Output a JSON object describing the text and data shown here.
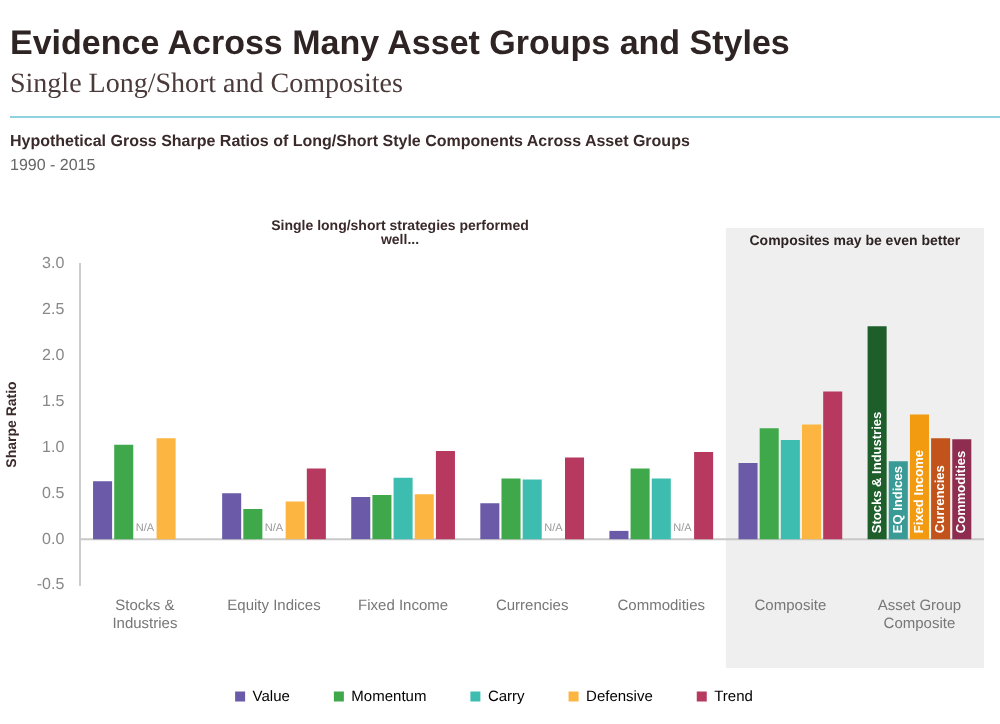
{
  "chart_data": {
    "type": "bar",
    "title": "Evidence Across Many Asset Groups and Styles",
    "subtitle": "Single Long/Short and Composites",
    "annotations": [
      "Hypothetical Gross Sharpe Ratios of Long/Short Style Components Across Asset Groups",
      "1990 - 2015",
      "Single long/short strategies performed well...",
      {
        "text": "N/A",
        "x": "Stocks & Industries",
        "y": 0
      },
      {
        "text": "N/A",
        "x": "Equity Indices",
        "y": 0
      },
      {
        "text": "N/A",
        "x": "Currencies",
        "y": 0
      },
      {
        "text": "N/A",
        "x": "Commodities",
        "y": 0
      },
      "Stocks & Industries",
      "EQ Indices",
      "Fixed Income",
      "Currencies",
      "Commodities"
    ],
    "ylabel": "Sharpe Ratio",
    "categories": [
      "Stocks & Industries",
      "Equity Indices",
      "Fixed Income",
      "Currencies",
      "Commodities",
      "Composite",
      "Asset Group Composite"
    ],
    "series": [
      {
        "name": "Value",
        "color": "#6a5aa8",
        "values": [
          0.63,
          0.5,
          0.46,
          0.39,
          0.09,
          0.83,
          2.32
        ],
        "colors": [
          "#6a5aa8",
          "#6a5aa8",
          "#6a5aa8",
          "#6a5aa8",
          "#6a5aa8",
          "#6a5aa8",
          "#1d5e2a"
        ]
      },
      {
        "name": "Momentum",
        "color": "#3fa84a",
        "values": [
          1.03,
          0.33,
          0.48,
          0.66,
          0.77,
          1.21,
          0.85
        ],
        "colors": [
          "#3fa84a",
          "#3fa84a",
          "#3fa84a",
          "#3fa84a",
          "#3fa84a",
          "#3fa84a",
          "#3a9a95"
        ]
      },
      {
        "name": "Carry",
        "color": "#3dbdb0",
        "values": [
          null,
          null,
          0.67,
          0.65,
          0.66,
          1.08,
          1.36
        ],
        "colors": [
          "#3dbdb0",
          "#3dbdb0",
          "#3dbdb0",
          "#3dbdb0",
          "#3dbdb0",
          "#3dbdb0",
          "#f29b11"
        ]
      },
      {
        "name": "Defensive",
        "color": "#fbb540",
        "values": [
          1.1,
          0.41,
          0.49,
          null,
          null,
          1.25,
          1.1
        ],
        "colors": [
          "#fbb540",
          "#fbb540",
          "#fbb540",
          "#fbb540",
          "#fbb540",
          "#fbb540",
          "#c2531a"
        ]
      },
      {
        "name": "Trend",
        "color": "#b8395f",
        "values": [
          null,
          0.77,
          0.96,
          0.89,
          0.95,
          1.61,
          1.09
        ],
        "colors": [
          "#b8395f",
          "#b8395f",
          "#b8395f",
          "#b8395f",
          "#b8395f",
          "#b8395f",
          "#8e2d4f"
        ]
      }
    ],
    "ylim": [
      -0.5,
      3
    ],
    "yticks": [
      {
        "value": -0.5,
        "label": "-0.5"
      },
      {
        "value": 0,
        "label": "0.0"
      },
      {
        "value": 0.5,
        "label": "0.5"
      },
      {
        "value": 1,
        "label": "1.0"
      },
      {
        "value": 1.5,
        "label": "1.5"
      },
      {
        "value": 2,
        "label": "2.0"
      },
      {
        "value": 2.5,
        "label": "2.5"
      },
      {
        "value": 3,
        "label": "3.0"
      }
    ],
    "ref_lines": [
      {
        "axis": "y",
        "value": 0,
        "color": "#c8c8c8"
      }
    ],
    "bands": [
      {
        "axis": "x",
        "from": "Composite",
        "to": "Asset Group Composite",
        "label": "Composites may be even better",
        "color": "#efefef"
      }
    ],
    "grid": false,
    "legend": "bottom"
  }
}
